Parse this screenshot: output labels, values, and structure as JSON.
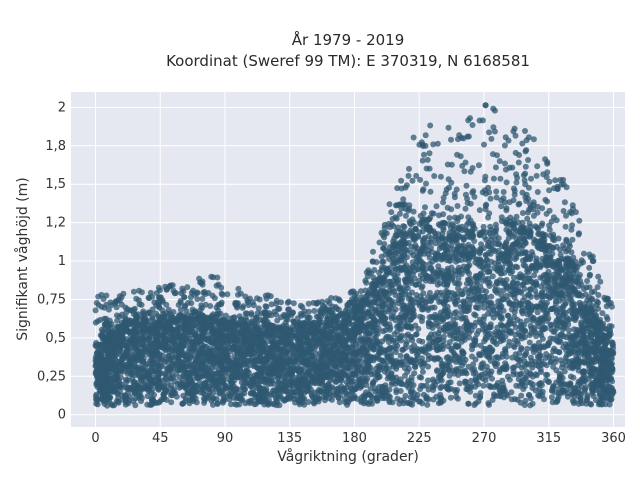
{
  "chart_data": {
    "type": "scatter",
    "title_line1": "År 1979 - 2019",
    "title_line2": "Koordinat (Sweref 99 TM): E 370319, N 6168581",
    "xlabel": "Vågriktning (grader)",
    "ylabel": "Signifikant våghöjd (m)",
    "xlim": [
      -17,
      368
    ],
    "ylim": [
      -0.08,
      2.1
    ],
    "xticks": [
      {
        "value": 0,
        "label": "0"
      },
      {
        "value": 45,
        "label": "45"
      },
      {
        "value": 90,
        "label": "90"
      },
      {
        "value": 135,
        "label": "135"
      },
      {
        "value": 180,
        "label": "180"
      },
      {
        "value": 225,
        "label": "225"
      },
      {
        "value": 270,
        "label": "270"
      },
      {
        "value": 315,
        "label": "315"
      },
      {
        "value": 360,
        "label": "360"
      }
    ],
    "yticks": [
      {
        "value": 0,
        "label": "0"
      },
      {
        "value": 0.25,
        "label": "0,25"
      },
      {
        "value": 0.5,
        "label": "0,5"
      },
      {
        "value": 0.75,
        "label": "0,75"
      },
      {
        "value": 1,
        "label": "1"
      },
      {
        "value": 1.25,
        "label": "1,2"
      },
      {
        "value": 1.5,
        "label": "1,5"
      },
      {
        "value": 1.75,
        "label": "1,8"
      },
      {
        "value": 2,
        "label": "2"
      }
    ],
    "grid": true,
    "colors": {
      "marker": "#2f5872",
      "plot_bg": "#e5e8f0",
      "grid": "#ffffff"
    },
    "envelope": {
      "x": [
        0,
        20,
        40,
        60,
        80,
        100,
        120,
        140,
        160,
        180,
        195,
        210,
        225,
        240,
        255,
        270,
        285,
        300,
        315,
        330,
        345,
        360
      ],
      "lower": [
        0.05,
        0.06,
        0.06,
        0.06,
        0.06,
        0.06,
        0.06,
        0.06,
        0.06,
        0.06,
        0.06,
        0.06,
        0.06,
        0.06,
        0.06,
        0.06,
        0.06,
        0.06,
        0.06,
        0.06,
        0.06,
        0.06
      ],
      "dense_upper": [
        0.45,
        0.6,
        0.62,
        0.65,
        0.63,
        0.6,
        0.58,
        0.57,
        0.6,
        0.68,
        0.85,
        1.2,
        1.28,
        1.25,
        1.2,
        1.22,
        1.25,
        1.22,
        1.15,
        1.0,
        0.7,
        0.45
      ],
      "sparse_upper": [
        0.78,
        0.8,
        0.82,
        0.86,
        0.92,
        0.82,
        0.78,
        0.72,
        0.75,
        0.82,
        1.1,
        1.6,
        1.95,
        1.85,
        1.9,
        2.03,
        1.97,
        1.85,
        1.7,
        1.45,
        1.05,
        0.7
      ]
    }
  }
}
